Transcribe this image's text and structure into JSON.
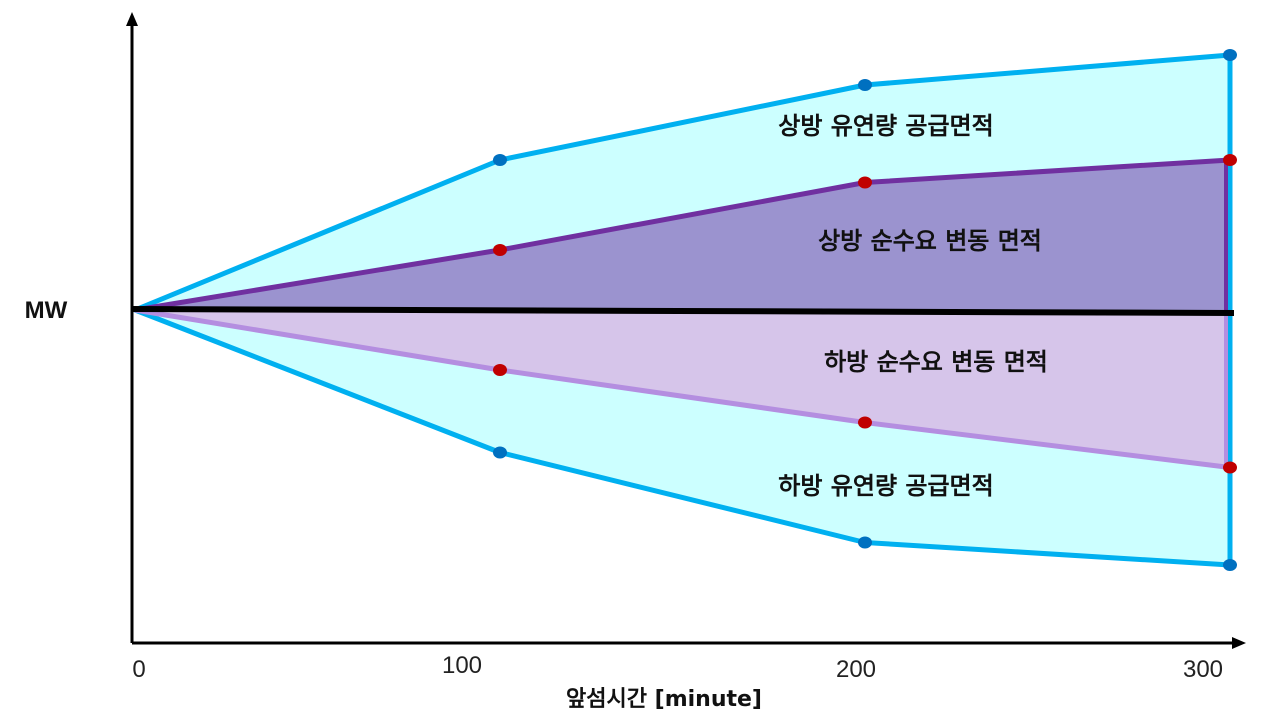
{
  "chart_data": {
    "type": "area",
    "xlabel": "앞섬시간 [minute]",
    "ylabel": "MW",
    "x_ticks": [
      "0",
      "100",
      "200",
      "300"
    ],
    "x": [
      0,
      100,
      200,
      300
    ],
    "xlim": [
      0,
      300
    ],
    "series": [
      {
        "name": "상방 유연량 공급면적",
        "values": [
          0,
          100,
          150,
          170
        ]
      },
      {
        "name": "상방 순수요 변동 면적",
        "values": [
          0,
          40,
          85,
          100
        ]
      },
      {
        "name": "하방 순수요 변동 면적",
        "values": [
          0,
          -40,
          -75,
          -105
        ]
      },
      {
        "name": "하방 유연량 공급면적",
        "values": [
          0,
          -95,
          -155,
          -170
        ]
      }
    ],
    "colors": {
      "supply_fill": "#ccffff",
      "supply_line": "#00b0f0",
      "supply_marker": "#0070c0",
      "up_demand_fill": "#9b93cf",
      "up_demand_line": "#7030a0",
      "down_demand_fill": "#d6c5ea",
      "down_demand_line": "#b48ee0",
      "demand_marker": "#c00000",
      "zero_line": "#000000",
      "axis": "#000000"
    }
  }
}
